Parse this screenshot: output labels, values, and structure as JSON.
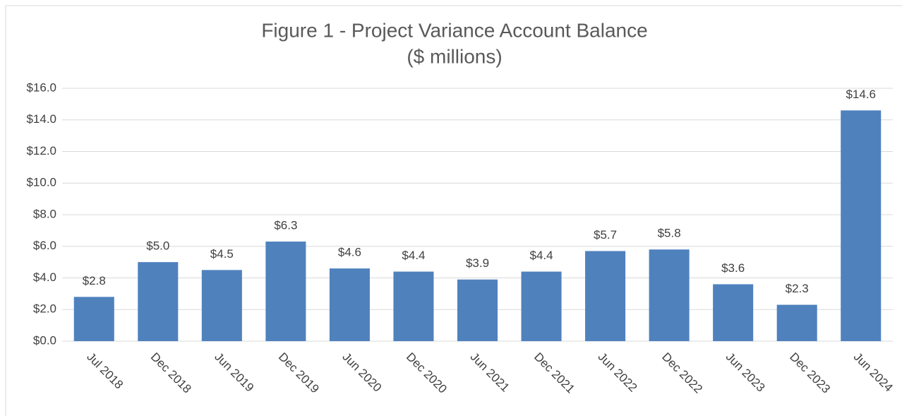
{
  "chart_data": {
    "type": "bar",
    "title": "Figure 1 - Project Variance Account Balance",
    "subtitle": "($ millions)",
    "categories": [
      "Jul 2018",
      "Dec 2018",
      "Jun 2019",
      "Dec 2019",
      "Jun 2020",
      "Dec 2020",
      "Jun 2021",
      "Dec 2021",
      "Jun 2022",
      "Dec 2022",
      "Jun 2023",
      "Dec 2023",
      "Jun 2024"
    ],
    "values": [
      2.8,
      5.0,
      4.5,
      6.3,
      4.6,
      4.4,
      3.9,
      4.4,
      5.7,
      5.8,
      3.6,
      2.3,
      14.6
    ],
    "value_labels": [
      "$2.8",
      "$5.0",
      "$4.5",
      "$6.3",
      "$4.6",
      "$4.4",
      "$3.9",
      "$4.4",
      "$5.7",
      "$5.8",
      "$3.6",
      "$2.3",
      "$14.6"
    ],
    "color": "#4f81bd",
    "ylim": [
      0,
      16
    ],
    "yticks": [
      {
        "value": 0,
        "label": "$0.0"
      },
      {
        "value": 2,
        "label": "$2.0"
      },
      {
        "value": 4,
        "label": "$4.0"
      },
      {
        "value": 6,
        "label": "$6.0"
      },
      {
        "value": 8,
        "label": "$8.0"
      },
      {
        "value": 10,
        "label": "$10.0"
      },
      {
        "value": 12,
        "label": "$12.0"
      },
      {
        "value": 14,
        "label": "$14.0"
      },
      {
        "value": 16,
        "label": "$16.0"
      }
    ],
    "grid": true
  }
}
